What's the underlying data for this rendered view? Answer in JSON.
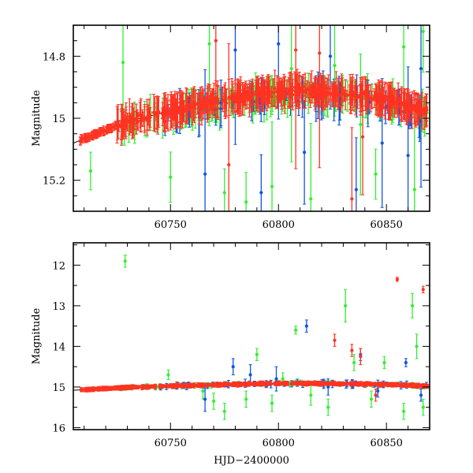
{
  "chart_data": [
    {
      "type": "scatter",
      "panel": "top",
      "ylabel": "Magnitude",
      "xlabel": "",
      "xlim": [
        60705,
        60870
      ],
      "ylim": [
        15.3,
        14.7
      ],
      "y_inverted": true,
      "x_ticks": [
        60750,
        60800,
        60850
      ],
      "x_tick_labels": [
        "60750",
        "60800",
        "60850"
      ],
      "y_ticks": [
        14.8,
        15.0,
        15.2
      ],
      "y_tick_labels": [
        "14.8",
        "15",
        "15.2"
      ],
      "series_colors": {
        "red": "#ff3322",
        "green": "#33ee33",
        "blue": "#1155dd",
        "model": "#000000"
      },
      "trend": {
        "x": [
          60705,
          60730,
          60760,
          60790,
          60810,
          60830,
          60850,
          60870
        ],
        "y": [
          15.08,
          15.01,
          14.96,
          14.92,
          14.91,
          14.92,
          14.94,
          14.98
        ]
      },
      "green_outliers": {
        "x": [
          60713,
          60728,
          60750,
          60768,
          60775,
          60785,
          60797,
          60806,
          60815,
          60826,
          60838,
          60845,
          60858,
          60863,
          60867
        ],
        "y": [
          15.17,
          14.82,
          15.19,
          14.76,
          15.24,
          15.27,
          15.22,
          14.84,
          15.26,
          14.83,
          15.02,
          15.18,
          14.77,
          15.23,
          14.72
        ]
      },
      "blue_outliers": {
        "x": [
          60766,
          60780,
          60792,
          60800,
          60812,
          60824,
          60836,
          60848,
          60860,
          60866
        ],
        "y": [
          15.18,
          14.78,
          15.24,
          14.76,
          15.11,
          14.8,
          15.23,
          15.08,
          15.12,
          14.84
        ]
      },
      "red_outliers": {
        "x": [
          60771,
          60777,
          60808,
          60819,
          60834,
          60839
        ],
        "y": [
          14.75,
          15.15,
          14.78,
          14.79,
          15.26,
          15.06
        ]
      }
    },
    {
      "type": "scatter",
      "panel": "bottom",
      "ylabel": "Magnitude",
      "xlabel": "HJD−2400000",
      "xlim": [
        60705,
        60870
      ],
      "ylim": [
        16.05,
        11.45
      ],
      "y_inverted": true,
      "x_ticks": [
        60750,
        60800,
        60850
      ],
      "x_tick_labels": [
        "60750",
        "60800",
        "60850"
      ],
      "y_ticks": [
        12,
        13,
        14,
        15,
        16
      ],
      "y_tick_labels": [
        "12",
        "13",
        "14",
        "15",
        "16"
      ],
      "series_colors": {
        "red": "#ff3322",
        "green": "#33ee33",
        "blue": "#1155dd",
        "model": "#000000"
      },
      "trend": {
        "x": [
          60705,
          60730,
          60760,
          60790,
          60810,
          60830,
          60850,
          60870
        ],
        "y": [
          15.08,
          15.01,
          14.96,
          14.92,
          14.91,
          14.92,
          14.94,
          14.98
        ]
      },
      "green_outliers": {
        "x": [
          60729,
          60749,
          60765,
          60775,
          60790,
          60797,
          60808,
          60815,
          60823,
          60831,
          60835,
          60843,
          60849,
          60858,
          60862,
          60864,
          60867,
          60770,
          60785,
          60802
        ],
        "y": [
          11.9,
          14.7,
          15.1,
          15.6,
          14.2,
          15.4,
          13.6,
          15.2,
          15.5,
          13.0,
          14.4,
          15.3,
          14.4,
          15.6,
          13.0,
          14.0,
          15.5,
          15.35,
          15.3,
          14.8
        ],
        "err": [
          0.15,
          0.12,
          0.2,
          0.2,
          0.15,
          0.2,
          0.1,
          0.25,
          0.2,
          0.4,
          0.2,
          0.2,
          0.15,
          0.2,
          0.3,
          0.3,
          0.2,
          0.2,
          0.2,
          0.15
        ]
      },
      "blue_outliers": {
        "x": [
          60766,
          60779,
          60787,
          60799,
          60813,
          60823,
          60838,
          60846,
          60859,
          60866
        ],
        "y": [
          15.3,
          14.5,
          14.7,
          14.8,
          13.5,
          15.0,
          14.2,
          15.1,
          14.4,
          15.2
        ],
        "err": [
          0.3,
          0.2,
          0.25,
          0.3,
          0.15,
          0.2,
          0.15,
          0.15,
          0.1,
          0.15
        ]
      },
      "red_outliers": {
        "x": [
          60826,
          60834,
          60838,
          60845,
          60855,
          60867
        ],
        "y": [
          13.85,
          14.1,
          14.25,
          15.2,
          12.35,
          12.6
        ],
        "err": [
          0.15,
          0.15,
          0.2,
          0.15,
          0.05,
          0.08
        ]
      }
    }
  ]
}
